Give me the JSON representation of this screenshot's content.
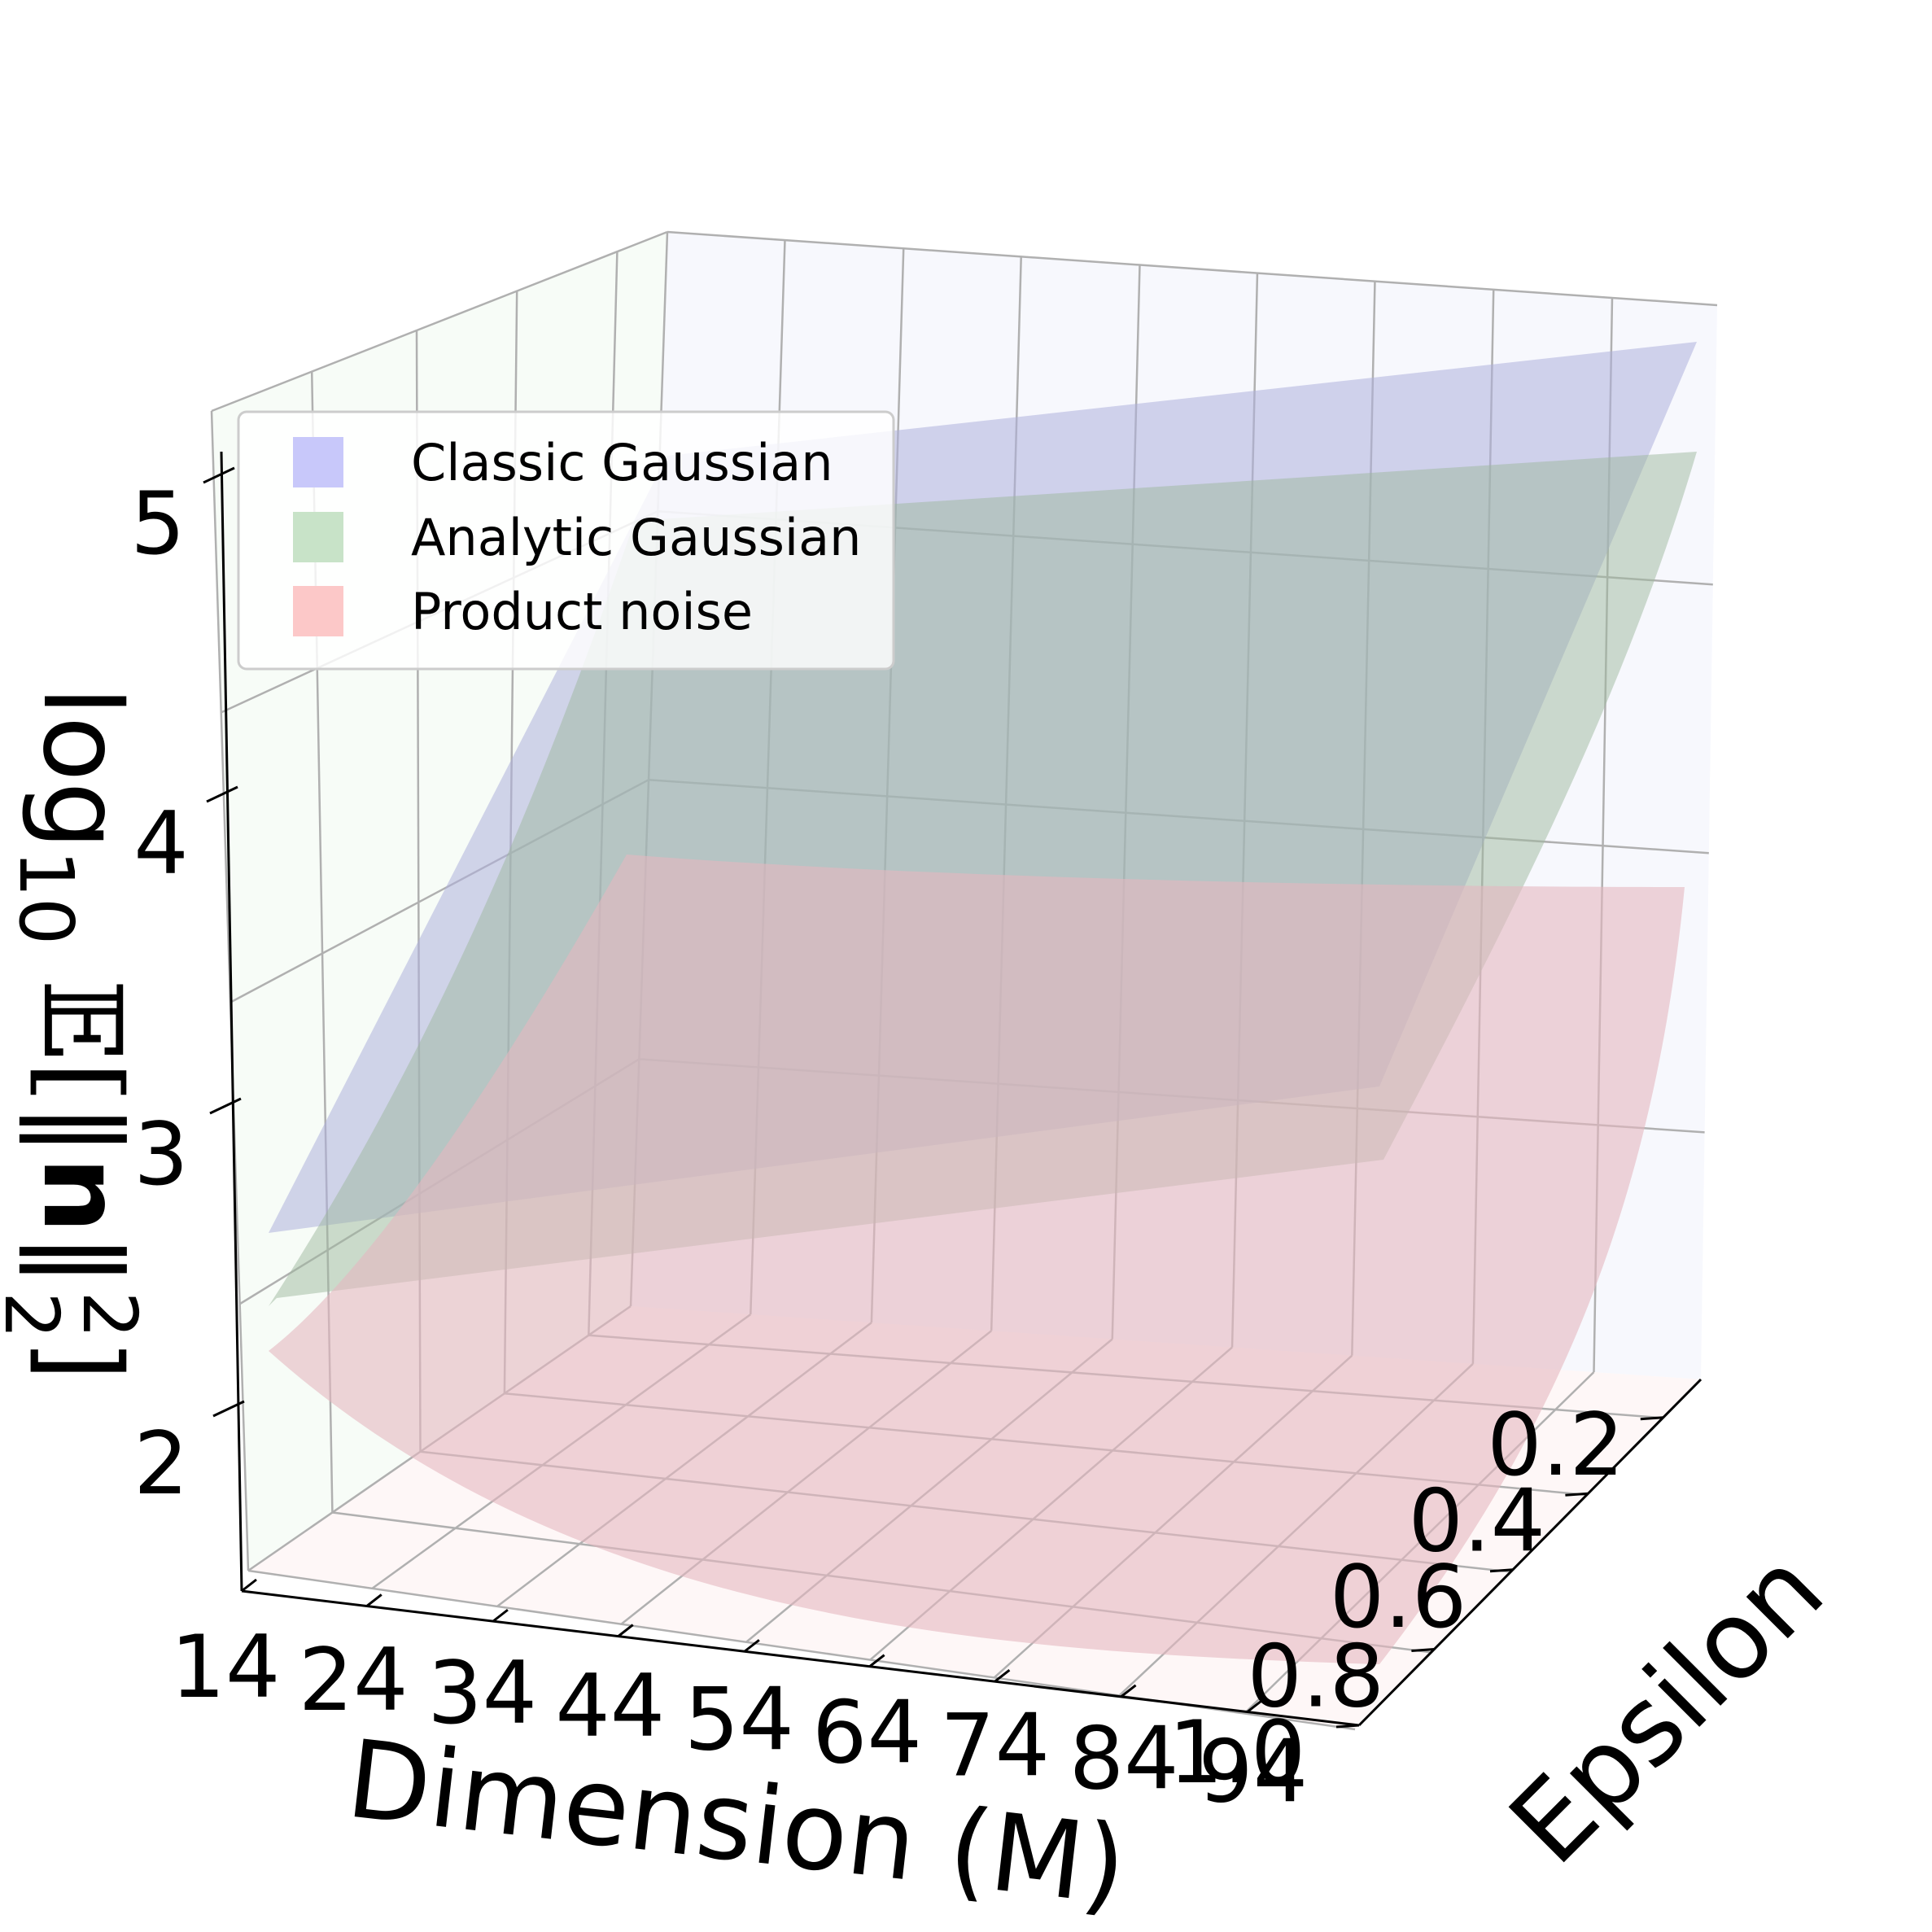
{
  "chart_data": {
    "type": "surface3d",
    "title": "",
    "xlabel": "Dimension (M)",
    "ylabel": "Epsilon",
    "zlabel_parts": [
      "log",
      "10",
      "𝔼[‖",
      "n",
      "‖",
      "2",
      "2",
      "]"
    ],
    "x_ticks": [
      "14",
      "24",
      "34",
      "44",
      "54",
      "64",
      "74",
      "84",
      "94"
    ],
    "y_ticks": [
      "0.2",
      "0.4",
      "0.6",
      "0.8",
      "1.0"
    ],
    "z_ticks": [
      "2",
      "3",
      "4",
      "5"
    ],
    "xlim": [
      10,
      100
    ],
    "ylim": [
      0.1,
      1.0
    ],
    "zlim": [
      1.6,
      5.1
    ],
    "grid": true,
    "legend_position": "top-left",
    "legend": [
      {
        "label": "Classic Gaussian",
        "color": "#c8c8fa"
      },
      {
        "label": "Analytic Gaussian",
        "color": "#c8e3c8"
      },
      {
        "label": "Product noise",
        "color": "#fcc8c8"
      }
    ],
    "series": [
      {
        "name": "Classic Gaussian",
        "color": "#b4b4e6",
        "corners": {
          "M14_eps0.1": 5.05,
          "M94_eps0.1": 5.05,
          "M14_eps1.0": 2.7,
          "M94_eps1.0": 3.1
        }
      },
      {
        "name": "Analytic Gaussian",
        "color": "#b4d2b4",
        "corners": {
          "M14_eps0.1": 4.7,
          "M94_eps0.1": 4.7,
          "M14_eps1.0": 2.45,
          "M94_eps1.0": 2.85
        }
      },
      {
        "name": "Product noise",
        "color": "#e6b4b4",
        "corners": {
          "M14_eps0.1": 3.8,
          "M94_eps0.1": 3.7,
          "M14_eps1.0": 1.6,
          "M94_eps1.0": 2.1
        }
      }
    ]
  }
}
